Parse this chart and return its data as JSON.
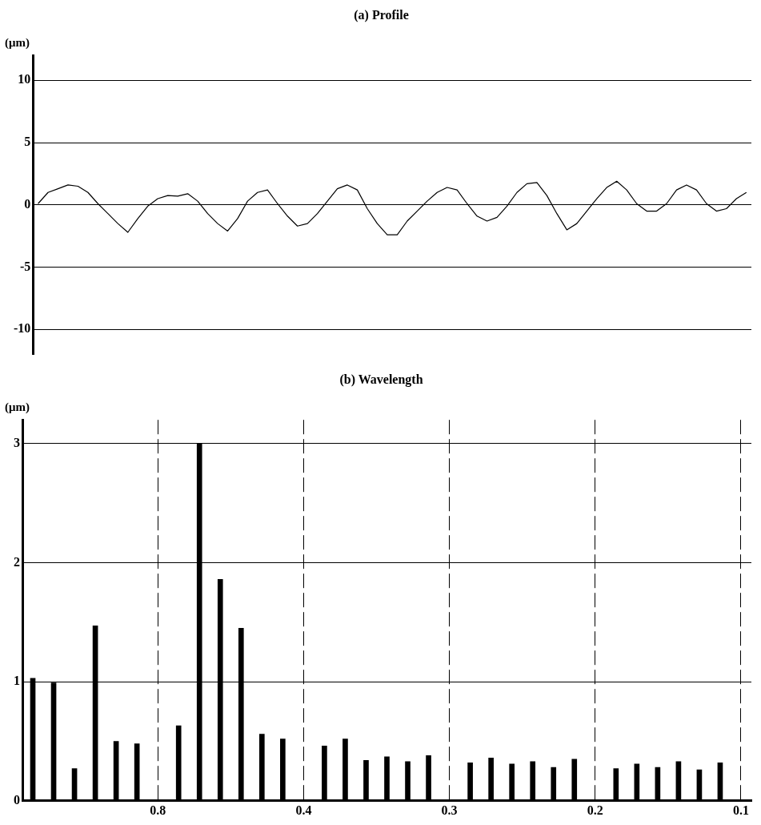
{
  "chart_data": [
    {
      "type": "line",
      "title": "(a) Profile",
      "ylabel": "(μm)",
      "categories": [
        null,
        null,
        null,
        null,
        null,
        null,
        null,
        null,
        null,
        null,
        null,
        null,
        null,
        null,
        null,
        null,
        null,
        null,
        null,
        null,
        null,
        null,
        null,
        null,
        null,
        null,
        null,
        null,
        null,
        null,
        null,
        null,
        null,
        null,
        null,
        null,
        null,
        null,
        null,
        null,
        null,
        null,
        null,
        null,
        null,
        null,
        null,
        null,
        null,
        null,
        null,
        null,
        null,
        null,
        null,
        null,
        null,
        null,
        null,
        null,
        null,
        null,
        null,
        null,
        null,
        null,
        null,
        null,
        null,
        null,
        null,
        null
      ],
      "values": [
        0.1,
        1.0,
        1.3,
        1.6,
        1.5,
        1.0,
        0.1,
        -0.7,
        -1.5,
        -2.2,
        -1.1,
        -0.1,
        0.5,
        0.75,
        0.7,
        0.9,
        0.3,
        -0.7,
        -1.5,
        -2.1,
        -1.1,
        0.3,
        1.0,
        1.2,
        0.1,
        -0.9,
        -1.7,
        -1.5,
        -0.7,
        0.3,
        1.3,
        1.6,
        1.2,
        -0.3,
        -1.5,
        -2.4,
        -2.4,
        -1.3,
        -0.5,
        0.3,
        1.0,
        1.4,
        1.2,
        0.1,
        -0.9,
        -1.3,
        -1.0,
        -0.1,
        1.0,
        1.7,
        1.8,
        0.75,
        -0.7,
        -2.0,
        -1.5,
        -0.5,
        0.5,
        1.4,
        1.9,
        1.2,
        0.1,
        -0.5,
        -0.5,
        0.1,
        1.2,
        1.6,
        1.2,
        0.1,
        -0.5,
        -0.3,
        0.5,
        1.0
      ],
      "color": "#000000",
      "ylim": [
        -12,
        12
      ],
      "yticks": [
        -10,
        -5,
        0,
        5,
        10
      ],
      "grid": "y",
      "tick_labels": "y",
      "marker": "none"
    },
    {
      "type": "bar",
      "title": "(b) Wavelength",
      "ylabel": "(μm)",
      "categories": [
        null,
        null,
        null,
        null,
        null,
        null,
        "0.8",
        null,
        null,
        null,
        null,
        null,
        null,
        "0.4",
        null,
        null,
        null,
        null,
        null,
        null,
        "0.3",
        null,
        null,
        null,
        null,
        null,
        null,
        "0.2",
        null,
        null,
        null,
        null,
        null,
        null,
        "0.1"
      ],
      "values": [
        1.03,
        0.99,
        0.27,
        1.47,
        0.5,
        0.48,
        null,
        0.63,
        3.0,
        1.86,
        1.45,
        0.56,
        0.52,
        null,
        0.46,
        0.52,
        0.34,
        0.37,
        0.33,
        0.38,
        null,
        0.32,
        0.36,
        0.31,
        0.33,
        0.28,
        0.35,
        null,
        0.27,
        0.31,
        0.28,
        0.33,
        0.26,
        0.32,
        null
      ],
      "color": "#000000",
      "ylim": [
        0,
        3.2
      ],
      "yticks": [
        0,
        1,
        2,
        3
      ],
      "grid": true
    }
  ]
}
